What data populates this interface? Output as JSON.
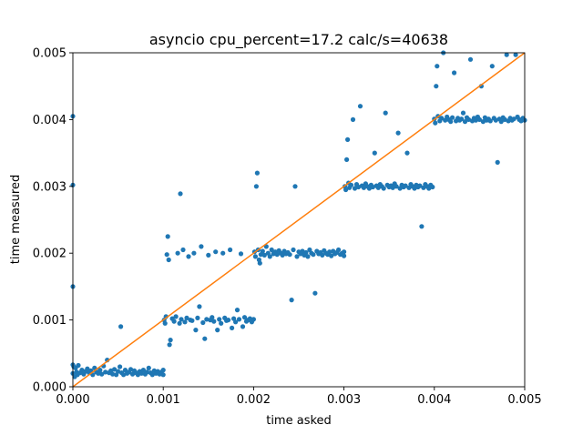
{
  "chart_data": {
    "type": "scatter",
    "title": "asyncio cpu_percent=17.2 calc/s=40638",
    "xlabel": "time asked",
    "ylabel": "time measured",
    "xlim": [
      0,
      0.005
    ],
    "ylim": [
      0,
      0.005
    ],
    "x_ticks": [
      "0.000",
      "0.001",
      "0.002",
      "0.003",
      "0.004",
      "0.005"
    ],
    "y_ticks": [
      "0.000",
      "0.001",
      "0.002",
      "0.003",
      "0.004",
      "0.005"
    ],
    "grid": false,
    "colors": {
      "points": "#1f77b4",
      "line": "#ff7f0e"
    },
    "reference_line": {
      "x": [
        0,
        0.005
      ],
      "y": [
        0,
        0.005
      ]
    },
    "series": [
      {
        "values_description": "scatter points (time asked, time measured)",
        "points": [
          [
            0.0,
            0.00405
          ],
          [
            0.0,
            0.00302
          ],
          [
            0.0,
            0.0015
          ],
          [
            0.0,
            0.00033
          ],
          [
            0.0,
            0.0002
          ],
          [
            1e-05,
            0.0003
          ],
          [
            2e-05,
            0.00015
          ],
          [
            3e-05,
            0.00028
          ],
          [
            4e-05,
            0.00022
          ],
          [
            5e-05,
            0.00018
          ],
          [
            6e-05,
            0.00032
          ],
          [
            8e-05,
            0.00021
          ],
          [
            0.0001,
            0.00025
          ],
          [
            0.00012,
            0.00019
          ],
          [
            0.00014,
            0.00023
          ],
          [
            0.00016,
            0.00027
          ],
          [
            0.00018,
            0.00021
          ],
          [
            0.0002,
            0.00024
          ],
          [
            0.00022,
            0.00018
          ],
          [
            0.00024,
            0.00028
          ],
          [
            0.00026,
            0.00022
          ],
          [
            0.00028,
            0.0002
          ],
          [
            0.0003,
            0.00025
          ],
          [
            0.00032,
            0.00019
          ],
          [
            0.00034,
            0.00031
          ],
          [
            0.00036,
            0.00022
          ],
          [
            0.00038,
            0.0004
          ],
          [
            0.0004,
            0.00021
          ],
          [
            0.00042,
            0.00024
          ],
          [
            0.00044,
            0.00019
          ],
          [
            0.00046,
            0.00026
          ],
          [
            0.00048,
            0.00018
          ],
          [
            0.0005,
            0.00023
          ],
          [
            0.00052,
            0.0003
          ],
          [
            0.00053,
            0.0009
          ],
          [
            0.00054,
            0.00021
          ],
          [
            0.00056,
            0.00018
          ],
          [
            0.00058,
            0.00025
          ],
          [
            0.0006,
            0.0002
          ],
          [
            0.00062,
            0.00022
          ],
          [
            0.00064,
            0.00026
          ],
          [
            0.00066,
            0.00019
          ],
          [
            0.00068,
            0.00024
          ],
          [
            0.0007,
            0.00021
          ],
          [
            0.00072,
            0.00018
          ],
          [
            0.00074,
            0.00023
          ],
          [
            0.00076,
            0.0002
          ],
          [
            0.00078,
            0.00025
          ],
          [
            0.0008,
            0.00019
          ],
          [
            0.00082,
            0.00022
          ],
          [
            0.00084,
            0.00028
          ],
          [
            0.00086,
            0.00021
          ],
          [
            0.00088,
            0.00018
          ],
          [
            0.0009,
            0.00024
          ],
          [
            0.00092,
            0.0002
          ],
          [
            0.00094,
            0.00023
          ],
          [
            0.00096,
            0.00019
          ],
          [
            0.00098,
            0.00022
          ],
          [
            0.001,
            0.00018
          ],
          [
            0.001,
            0.00025
          ],
          [
            0.00101,
            0.001
          ],
          [
            0.00102,
            0.00095
          ],
          [
            0.00103,
            0.00105
          ],
          [
            0.00104,
            0.00198
          ],
          [
            0.00105,
            0.00225
          ],
          [
            0.00106,
            0.0019
          ],
          [
            0.00107,
            0.00063
          ],
          [
            0.00108,
            0.0007
          ],
          [
            0.0011,
            0.00102
          ],
          [
            0.00112,
            0.00098
          ],
          [
            0.00114,
            0.00105
          ],
          [
            0.00116,
            0.002
          ],
          [
            0.00118,
            0.00095
          ],
          [
            0.00119,
            0.00289
          ],
          [
            0.0012,
            0.00101
          ],
          [
            0.00122,
            0.00205
          ],
          [
            0.00124,
            0.00097
          ],
          [
            0.00126,
            0.00103
          ],
          [
            0.00128,
            0.00195
          ],
          [
            0.0013,
            0.001
          ],
          [
            0.00132,
            0.00099
          ],
          [
            0.00134,
            0.002
          ],
          [
            0.00136,
            0.00085
          ],
          [
            0.00138,
            0.00103
          ],
          [
            0.0014,
            0.0012
          ],
          [
            0.00142,
            0.0021
          ],
          [
            0.00144,
            0.00096
          ],
          [
            0.00146,
            0.00072
          ],
          [
            0.00148,
            0.00101
          ],
          [
            0.0015,
            0.00197
          ],
          [
            0.00152,
            0.001
          ],
          [
            0.00154,
            0.00104
          ],
          [
            0.00156,
            0.00098
          ],
          [
            0.00158,
            0.00202
          ],
          [
            0.0016,
            0.00085
          ],
          [
            0.00162,
            0.00101
          ],
          [
            0.00164,
            0.00095
          ],
          [
            0.00166,
            0.002
          ],
          [
            0.00168,
            0.00103
          ],
          [
            0.0017,
            0.00099
          ],
          [
            0.00172,
            0.001
          ],
          [
            0.00174,
            0.00205
          ],
          [
            0.00176,
            0.00088
          ],
          [
            0.00178,
            0.00102
          ],
          [
            0.0018,
            0.00097
          ],
          [
            0.00182,
            0.00115
          ],
          [
            0.00184,
            0.00101
          ],
          [
            0.00186,
            0.00199
          ],
          [
            0.00188,
            0.0009
          ],
          [
            0.0019,
            0.00104
          ],
          [
            0.00192,
            0.00098
          ],
          [
            0.00194,
            0.001
          ],
          [
            0.00196,
            0.00102
          ],
          [
            0.00198,
            0.00097
          ],
          [
            0.002,
            0.00101
          ],
          [
            0.00201,
            0.00202
          ],
          [
            0.00202,
            0.00195
          ],
          [
            0.00203,
            0.003
          ],
          [
            0.00204,
            0.0032
          ],
          [
            0.00205,
            0.00205
          ],
          [
            0.00206,
            0.0019
          ],
          [
            0.00207,
            0.00185
          ],
          [
            0.00208,
            0.00198
          ],
          [
            0.0021,
            0.00203
          ],
          [
            0.00212,
            0.00197
          ],
          [
            0.00214,
            0.0021
          ],
          [
            0.00216,
            0.002
          ],
          [
            0.00218,
            0.00195
          ],
          [
            0.0022,
            0.00205
          ],
          [
            0.00222,
            0.00199
          ],
          [
            0.00224,
            0.00202
          ],
          [
            0.00226,
            0.00198
          ],
          [
            0.00228,
            0.00204
          ],
          [
            0.0023,
            0.002
          ],
          [
            0.00232,
            0.00197
          ],
          [
            0.00234,
            0.00203
          ],
          [
            0.00236,
            0.00199
          ],
          [
            0.00238,
            0.00201
          ],
          [
            0.0024,
            0.00198
          ],
          [
            0.00242,
            0.0013
          ],
          [
            0.00244,
            0.00205
          ],
          [
            0.00246,
            0.003
          ],
          [
            0.00248,
            0.00195
          ],
          [
            0.0025,
            0.00202
          ],
          [
            0.00252,
            0.00199
          ],
          [
            0.00254,
            0.00203
          ],
          [
            0.00256,
            0.00197
          ],
          [
            0.00258,
            0.00201
          ],
          [
            0.0026,
            0.00195
          ],
          [
            0.00262,
            0.00205
          ],
          [
            0.00264,
            0.002
          ],
          [
            0.00266,
            0.00198
          ],
          [
            0.00268,
            0.0014
          ],
          [
            0.0027,
            0.00203
          ],
          [
            0.00272,
            0.00199
          ],
          [
            0.00274,
            0.00201
          ],
          [
            0.00276,
            0.00197
          ],
          [
            0.00278,
            0.00204
          ],
          [
            0.0028,
            0.002
          ],
          [
            0.00282,
            0.00198
          ],
          [
            0.00284,
            0.00202
          ],
          [
            0.00286,
            0.00196
          ],
          [
            0.00288,
            0.00203
          ],
          [
            0.0029,
            0.00199
          ],
          [
            0.00292,
            0.00201
          ],
          [
            0.00294,
            0.00205
          ],
          [
            0.00296,
            0.00198
          ],
          [
            0.00298,
            0.002
          ],
          [
            0.003,
            0.00202
          ],
          [
            0.003,
            0.00196
          ],
          [
            0.00301,
            0.003
          ],
          [
            0.00302,
            0.00295
          ],
          [
            0.00303,
            0.0034
          ],
          [
            0.00304,
            0.0037
          ],
          [
            0.00305,
            0.00305
          ],
          [
            0.00306,
            0.00298
          ],
          [
            0.00308,
            0.00302
          ],
          [
            0.0031,
            0.004
          ],
          [
            0.00312,
            0.00297
          ],
          [
            0.00314,
            0.00303
          ],
          [
            0.00316,
            0.00299
          ],
          [
            0.00318,
            0.0042
          ],
          [
            0.0032,
            0.00301
          ],
          [
            0.00322,
            0.00298
          ],
          [
            0.00324,
            0.00304
          ],
          [
            0.00326,
            0.003
          ],
          [
            0.00328,
            0.00297
          ],
          [
            0.0033,
            0.00302
          ],
          [
            0.00332,
            0.00299
          ],
          [
            0.00334,
            0.0035
          ],
          [
            0.00336,
            0.00301
          ],
          [
            0.00338,
            0.00298
          ],
          [
            0.0034,
            0.00303
          ],
          [
            0.00342,
            0.003
          ],
          [
            0.00344,
            0.00297
          ],
          [
            0.00346,
            0.0041
          ],
          [
            0.00348,
            0.00302
          ],
          [
            0.0035,
            0.00299
          ],
          [
            0.00352,
            0.00301
          ],
          [
            0.00354,
            0.00298
          ],
          [
            0.00356,
            0.00304
          ],
          [
            0.00358,
            0.003
          ],
          [
            0.0036,
            0.0038
          ],
          [
            0.00362,
            0.00297
          ],
          [
            0.00364,
            0.00302
          ],
          [
            0.00366,
            0.00299
          ],
          [
            0.00368,
            0.00301
          ],
          [
            0.0037,
            0.0035
          ],
          [
            0.00372,
            0.00298
          ],
          [
            0.00374,
            0.00303
          ],
          [
            0.00376,
            0.003
          ],
          [
            0.00378,
            0.00297
          ],
          [
            0.0038,
            0.00302
          ],
          [
            0.00382,
            0.00299
          ],
          [
            0.00384,
            0.00301
          ],
          [
            0.00386,
            0.0024
          ],
          [
            0.00388,
            0.00298
          ],
          [
            0.0039,
            0.00303
          ],
          [
            0.00392,
            0.003
          ],
          [
            0.00394,
            0.00297
          ],
          [
            0.00396,
            0.00302
          ],
          [
            0.00398,
            0.00299
          ],
          [
            0.004,
            0.00401
          ],
          [
            0.00401,
            0.00395
          ],
          [
            0.00402,
            0.0045
          ],
          [
            0.00403,
            0.0048
          ],
          [
            0.00404,
            0.00405
          ],
          [
            0.00406,
            0.00398
          ],
          [
            0.00408,
            0.00402
          ],
          [
            0.0041,
            0.005
          ],
          [
            0.00412,
            0.00399
          ],
          [
            0.00414,
            0.00404
          ],
          [
            0.00416,
            0.004
          ],
          [
            0.00418,
            0.00397
          ],
          [
            0.0042,
            0.00403
          ],
          [
            0.00422,
            0.0047
          ],
          [
            0.00424,
            0.00398
          ],
          [
            0.00426,
            0.00402
          ],
          [
            0.00428,
            0.00399
          ],
          [
            0.0043,
            0.00401
          ],
          [
            0.00432,
            0.0041
          ],
          [
            0.00434,
            0.00397
          ],
          [
            0.00436,
            0.00403
          ],
          [
            0.00438,
            0.004
          ],
          [
            0.0044,
            0.0049
          ],
          [
            0.00442,
            0.00398
          ],
          [
            0.00444,
            0.00402
          ],
          [
            0.00446,
            0.00399
          ],
          [
            0.00448,
            0.00404
          ],
          [
            0.0045,
            0.004
          ],
          [
            0.00452,
            0.0045
          ],
          [
            0.00454,
            0.00397
          ],
          [
            0.00456,
            0.00403
          ],
          [
            0.00458,
            0.00399
          ],
          [
            0.0046,
            0.00401
          ],
          [
            0.00462,
            0.00398
          ],
          [
            0.00464,
            0.0048
          ],
          [
            0.00466,
            0.00402
          ],
          [
            0.00468,
            0.00399
          ],
          [
            0.0047,
            0.00336
          ],
          [
            0.00472,
            0.00401
          ],
          [
            0.00474,
            0.00397
          ],
          [
            0.00476,
            0.00403
          ],
          [
            0.00478,
            0.004
          ],
          [
            0.0048,
            0.00497
          ],
          [
            0.00482,
            0.00398
          ],
          [
            0.00484,
            0.00402
          ],
          [
            0.00486,
            0.00399
          ],
          [
            0.00488,
            0.00401
          ],
          [
            0.0049,
            0.00497
          ],
          [
            0.00492,
            0.00404
          ],
          [
            0.00494,
            0.004
          ],
          [
            0.00496,
            0.00398
          ],
          [
            0.00498,
            0.00402
          ],
          [
            0.005,
            0.00399
          ]
        ]
      }
    ]
  }
}
